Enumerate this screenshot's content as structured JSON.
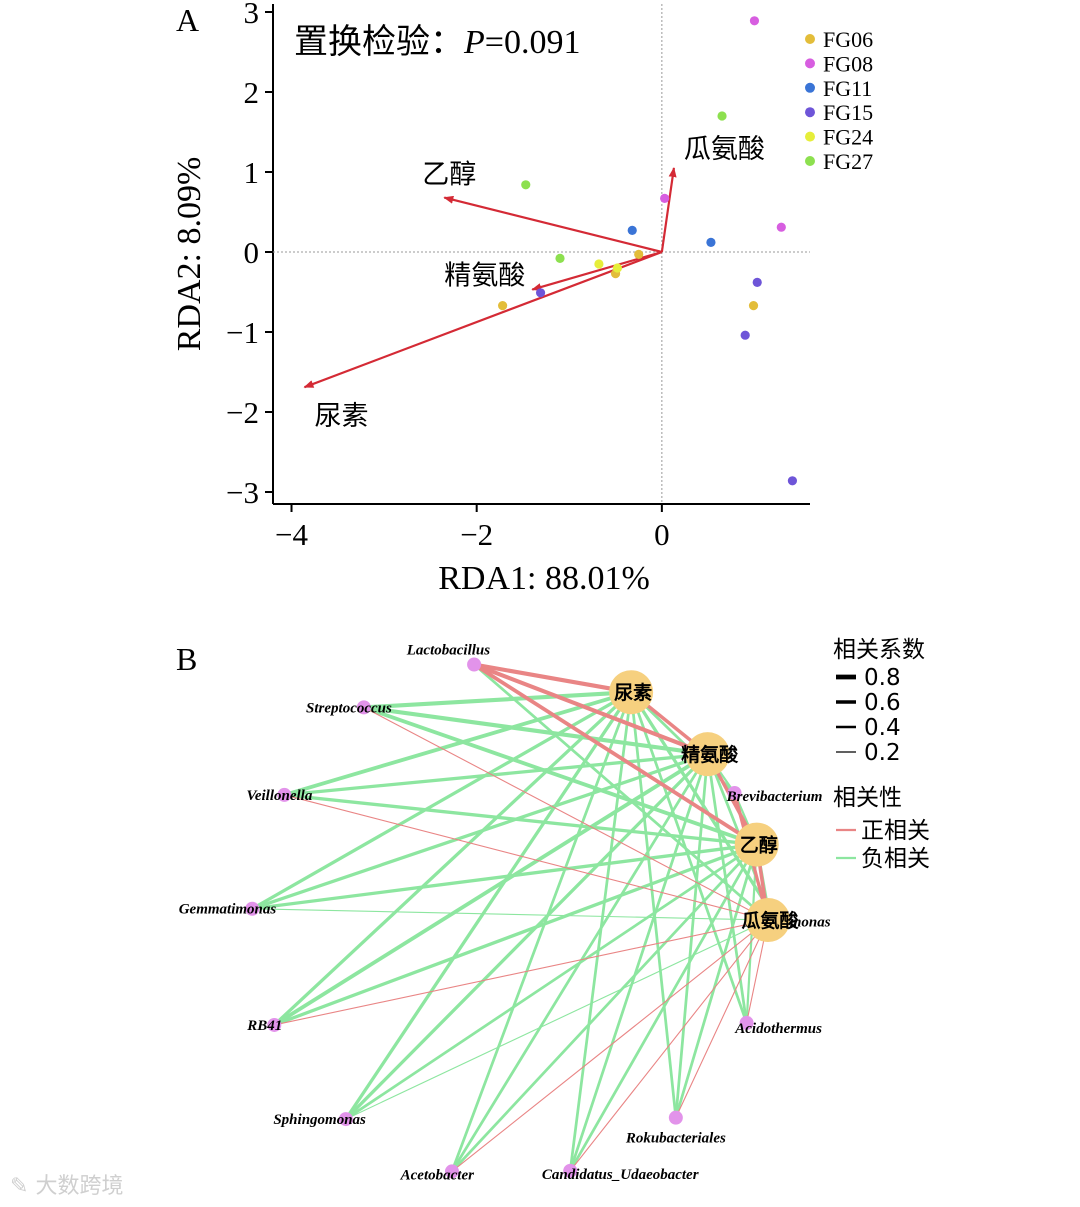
{
  "chart_data": [
    {
      "type": "scatter",
      "panel": "A",
      "title": "置换检验：P=0.091",
      "title_prefix": "置换检验：",
      "title_p": "P",
      "title_value": "=0.091",
      "xlabel": "RDA1: 88.01%",
      "ylabel": "RDA2: 8.09%",
      "xlim": [
        -4.2,
        1.6
      ],
      "ylim": [
        -3.15,
        3.1
      ],
      "xticks": [
        -4,
        -2,
        0
      ],
      "xtick_labels": [
        "−4",
        "−2",
        "0"
      ],
      "yticks": [
        -3,
        -2,
        -1,
        0,
        1,
        2,
        3
      ],
      "ytick_labels": [
        "−3",
        "−2",
        "−1",
        "0",
        "1",
        "2",
        "3"
      ],
      "legend_position": "top-right",
      "groups": [
        {
          "name": "FG06",
          "color": "#e3bd3a",
          "points": [
            [
              -1.72,
              -0.67
            ],
            [
              -0.5,
              -0.27
            ],
            [
              0.99,
              -0.67
            ],
            [
              -0.25,
              -0.03
            ]
          ]
        },
        {
          "name": "FG08",
          "color": "#d75ee0",
          "points": [
            [
              1.0,
              2.89
            ],
            [
              1.29,
              0.31
            ],
            [
              0.03,
              0.67
            ]
          ]
        },
        {
          "name": "FG11",
          "color": "#3a74d6",
          "points": [
            [
              0.53,
              0.12
            ],
            [
              -0.32,
              0.27
            ]
          ]
        },
        {
          "name": "FG15",
          "color": "#6e55d8",
          "points": [
            [
              1.41,
              -2.86
            ],
            [
              1.03,
              -0.38
            ],
            [
              0.9,
              -1.04
            ],
            [
              -1.31,
              -0.51
            ]
          ]
        },
        {
          "name": "FG24",
          "color": "#e6ee3a",
          "points": [
            [
              -0.68,
              -0.15
            ],
            [
              -0.48,
              -0.2
            ]
          ]
        },
        {
          "name": "FG27",
          "color": "#8de04f",
          "points": [
            [
              0.65,
              1.7
            ],
            [
              -1.47,
              0.84
            ],
            [
              -1.1,
              -0.08
            ]
          ]
        }
      ],
      "arrows": [
        {
          "name": "乙醇",
          "x": -2.35,
          "y": 0.68
        },
        {
          "name": "瓜氨酸",
          "x": 0.13,
          "y": 1.05
        },
        {
          "name": "精氨酸",
          "x": -1.4,
          "y": -0.47
        },
        {
          "name": "尿素",
          "x": -3.86,
          "y": -1.69
        }
      ]
    },
    {
      "type": "network",
      "panel": "B",
      "legend_width_title": "相关系数",
      "width_levels": [
        "0.8",
        "0.6",
        "0.4",
        "0.2"
      ],
      "legend_sign_title": "相关性",
      "signs": [
        {
          "name": "正相关",
          "color": "#e98585"
        },
        {
          "name": "负相关",
          "color": "#8de6a0"
        }
      ],
      "env_nodes": [
        "尿素",
        "精氨酸",
        "乙醇",
        "瓜氨酸"
      ],
      "genera": [
        "Lactobacillus",
        "Streptococcus",
        "Veillonella",
        "Gemmatimonas",
        "RB41",
        "Sphingomonas",
        "Acetobacter",
        "Candidatus_Udaeobacter",
        "Rokubacteriales",
        "Acidothermus",
        "Pseudomonas",
        "Brevibacterium"
      ],
      "edges": [
        {
          "env": "尿素",
          "genus": "Lactobacillus",
          "sign": "positive",
          "r": 0.75
        },
        {
          "env": "精氨酸",
          "genus": "Lactobacillus",
          "sign": "positive",
          "r": 0.75
        },
        {
          "env": "乙醇",
          "genus": "Lactobacillus",
          "sign": "positive",
          "r": 0.7
        },
        {
          "env": "瓜氨酸",
          "genus": "Lactobacillus",
          "sign": "negative",
          "r": 0.5
        },
        {
          "env": "尿素",
          "genus": "Streptococcus",
          "sign": "negative",
          "r": 0.75
        },
        {
          "env": "精氨酸",
          "genus": "Streptococcus",
          "sign": "negative",
          "r": 0.75
        },
        {
          "env": "乙醇",
          "genus": "Streptococcus",
          "sign": "negative",
          "r": 0.7
        },
        {
          "env": "瓜氨酸",
          "genus": "Streptococcus",
          "sign": "positive",
          "r": 0.2
        },
        {
          "env": "尿素",
          "genus": "Veillonella",
          "sign": "negative",
          "r": 0.7
        },
        {
          "env": "精氨酸",
          "genus": "Veillonella",
          "sign": "negative",
          "r": 0.6
        },
        {
          "env": "乙醇",
          "genus": "Veillonella",
          "sign": "negative",
          "r": 0.6
        },
        {
          "env": "瓜氨酸",
          "genus": "Veillonella",
          "sign": "positive",
          "r": 0.2
        },
        {
          "env": "尿素",
          "genus": "Gemmatimonas",
          "sign": "negative",
          "r": 0.6
        },
        {
          "env": "精氨酸",
          "genus": "Gemmatimonas",
          "sign": "negative",
          "r": 0.6
        },
        {
          "env": "乙醇",
          "genus": "Gemmatimonas",
          "sign": "negative",
          "r": 0.6
        },
        {
          "env": "瓜氨酸",
          "genus": "Gemmatimonas",
          "sign": "negative",
          "r": 0.2
        },
        {
          "env": "尿素",
          "genus": "RB41",
          "sign": "negative",
          "r": 0.6
        },
        {
          "env": "精氨酸",
          "genus": "RB41",
          "sign": "negative",
          "r": 0.7
        },
        {
          "env": "乙醇",
          "genus": "RB41",
          "sign": "negative",
          "r": 0.6
        },
        {
          "env": "瓜氨酸",
          "genus": "RB41",
          "sign": "positive",
          "r": 0.2
        },
        {
          "env": "尿素",
          "genus": "Sphingomonas",
          "sign": "negative",
          "r": 0.6
        },
        {
          "env": "精氨酸",
          "genus": "Sphingomonas",
          "sign": "negative",
          "r": 0.6
        },
        {
          "env": "乙醇",
          "genus": "Sphingomonas",
          "sign": "negative",
          "r": 0.5
        },
        {
          "env": "瓜氨酸",
          "genus": "Sphingomonas",
          "sign": "negative",
          "r": 0.2
        },
        {
          "env": "尿素",
          "genus": "Acetobacter",
          "sign": "negative",
          "r": 0.5
        },
        {
          "env": "精氨酸",
          "genus": "Acetobacter",
          "sign": "negative",
          "r": 0.5
        },
        {
          "env": "乙醇",
          "genus": "Acetobacter",
          "sign": "negative",
          "r": 0.5
        },
        {
          "env": "瓜氨酸",
          "genus": "Acetobacter",
          "sign": "positive",
          "r": 0.2
        },
        {
          "env": "尿素",
          "genus": "Candidatus_Udaeobacter",
          "sign": "negative",
          "r": 0.5
        },
        {
          "env": "精氨酸",
          "genus": "Candidatus_Udaeobacter",
          "sign": "negative",
          "r": 0.5
        },
        {
          "env": "乙醇",
          "genus": "Candidatus_Udaeobacter",
          "sign": "negative",
          "r": 0.5
        },
        {
          "env": "瓜氨酸",
          "genus": "Candidatus_Udaeobacter",
          "sign": "positive",
          "r": 0.2
        },
        {
          "env": "尿素",
          "genus": "Rokubacteriales",
          "sign": "negative",
          "r": 0.5
        },
        {
          "env": "精氨酸",
          "genus": "Rokubacteriales",
          "sign": "negative",
          "r": 0.5
        },
        {
          "env": "乙醇",
          "genus": "Rokubacteriales",
          "sign": "negative",
          "r": 0.5
        },
        {
          "env": "瓜氨酸",
          "genus": "Rokubacteriales",
          "sign": "positive",
          "r": 0.2
        },
        {
          "env": "尿素",
          "genus": "Acidothermus",
          "sign": "negative",
          "r": 0.5
        },
        {
          "env": "精氨酸",
          "genus": "Acidothermus",
          "sign": "negative",
          "r": 0.5
        },
        {
          "env": "乙醇",
          "genus": "Acidothermus",
          "sign": "negative",
          "r": 0.4
        },
        {
          "env": "瓜氨酸",
          "genus": "Acidothermus",
          "sign": "positive",
          "r": 0.2
        },
        {
          "env": "尿素",
          "genus": "Pseudomonas",
          "sign": "negative",
          "r": 0.6
        },
        {
          "env": "精氨酸",
          "genus": "Pseudomonas",
          "sign": "negative",
          "r": 0.5
        },
        {
          "env": "乙醇",
          "genus": "Pseudomonas",
          "sign": "negative",
          "r": 0.5
        },
        {
          "env": "瓜氨酸",
          "genus": "Pseudomonas",
          "sign": "negative",
          "r": 0.2
        },
        {
          "env": "尿素",
          "genus": "Brevibacterium",
          "sign": "negative",
          "r": 0.5
        },
        {
          "env": "精氨酸",
          "genus": "Brevibacterium",
          "sign": "negative",
          "r": 0.4
        },
        {
          "env": "乙醇",
          "genus": "Brevibacterium",
          "sign": "negative",
          "r": 0.4
        },
        {
          "env": "瓜氨酸",
          "genus": "Brevibacterium",
          "sign": "positive",
          "r": 0.6
        }
      ]
    }
  ],
  "watermark": "大数跨境"
}
